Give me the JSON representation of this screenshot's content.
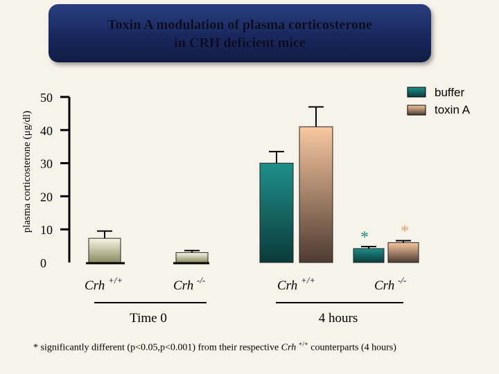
{
  "title_line1": "Toxin A modulation of plasma corticosterone",
  "title_line2": "in CRH deficient mice",
  "footnote_pre": "* significantly different (p<0.05,p<0.001) from their respective ",
  "footnote_crh": "Crh",
  "footnote_sup": "+/+",
  "footnote_post": " counterparts (4 hours)",
  "colors": {
    "buffer_top": "#1f8f8a",
    "buffer_bottom": "#0b3b3a",
    "toxin_top": "#f8c8a0",
    "toxin_bottom": "#4e3b32",
    "time0_top": "#f8f6e4",
    "time0_bottom": "#8a8a60",
    "star_buffer": "#1f8f8a",
    "star_toxin": "#e0a070",
    "title_bg": "#18285e"
  },
  "chart_data": {
    "type": "bar",
    "ylabel": "plasma corticosterone (μg/dl)",
    "ylim": [
      0,
      50
    ],
    "yticks": [
      0,
      10,
      20,
      30,
      40,
      50
    ],
    "legend": [
      "buffer",
      "toxin A"
    ],
    "legend_position": "top-right",
    "groups": [
      {
        "time": "Time 0",
        "genotype": "Crh",
        "genotype_sup": "+/+"
      },
      {
        "time": "Time 0",
        "genotype": "Crh",
        "genotype_sup": "-/-"
      },
      {
        "time": "4 hours",
        "genotype": "Crh",
        "genotype_sup": "+/+"
      },
      {
        "time": "4 hours",
        "genotype": "Crh",
        "genotype_sup": "-/-"
      }
    ],
    "time_labels": [
      "Time 0",
      "4 hours"
    ],
    "bars": [
      {
        "group": 0,
        "series": "time0",
        "value": 7.3,
        "error": 2.2,
        "significant": false
      },
      {
        "group": 1,
        "series": "time0",
        "value": 3.0,
        "error": 0.6,
        "significant": false
      },
      {
        "group": 2,
        "series": "buffer",
        "value": 30.0,
        "error": 3.5,
        "significant": false
      },
      {
        "group": 2,
        "series": "toxin A",
        "value": 41.0,
        "error": 6.0,
        "significant": false
      },
      {
        "group": 3,
        "series": "buffer",
        "value": 4.2,
        "error": 0.6,
        "significant": true
      },
      {
        "group": 3,
        "series": "toxin A",
        "value": 6.0,
        "error": 0.6,
        "significant": true
      }
    ],
    "significance_marker": "*"
  }
}
